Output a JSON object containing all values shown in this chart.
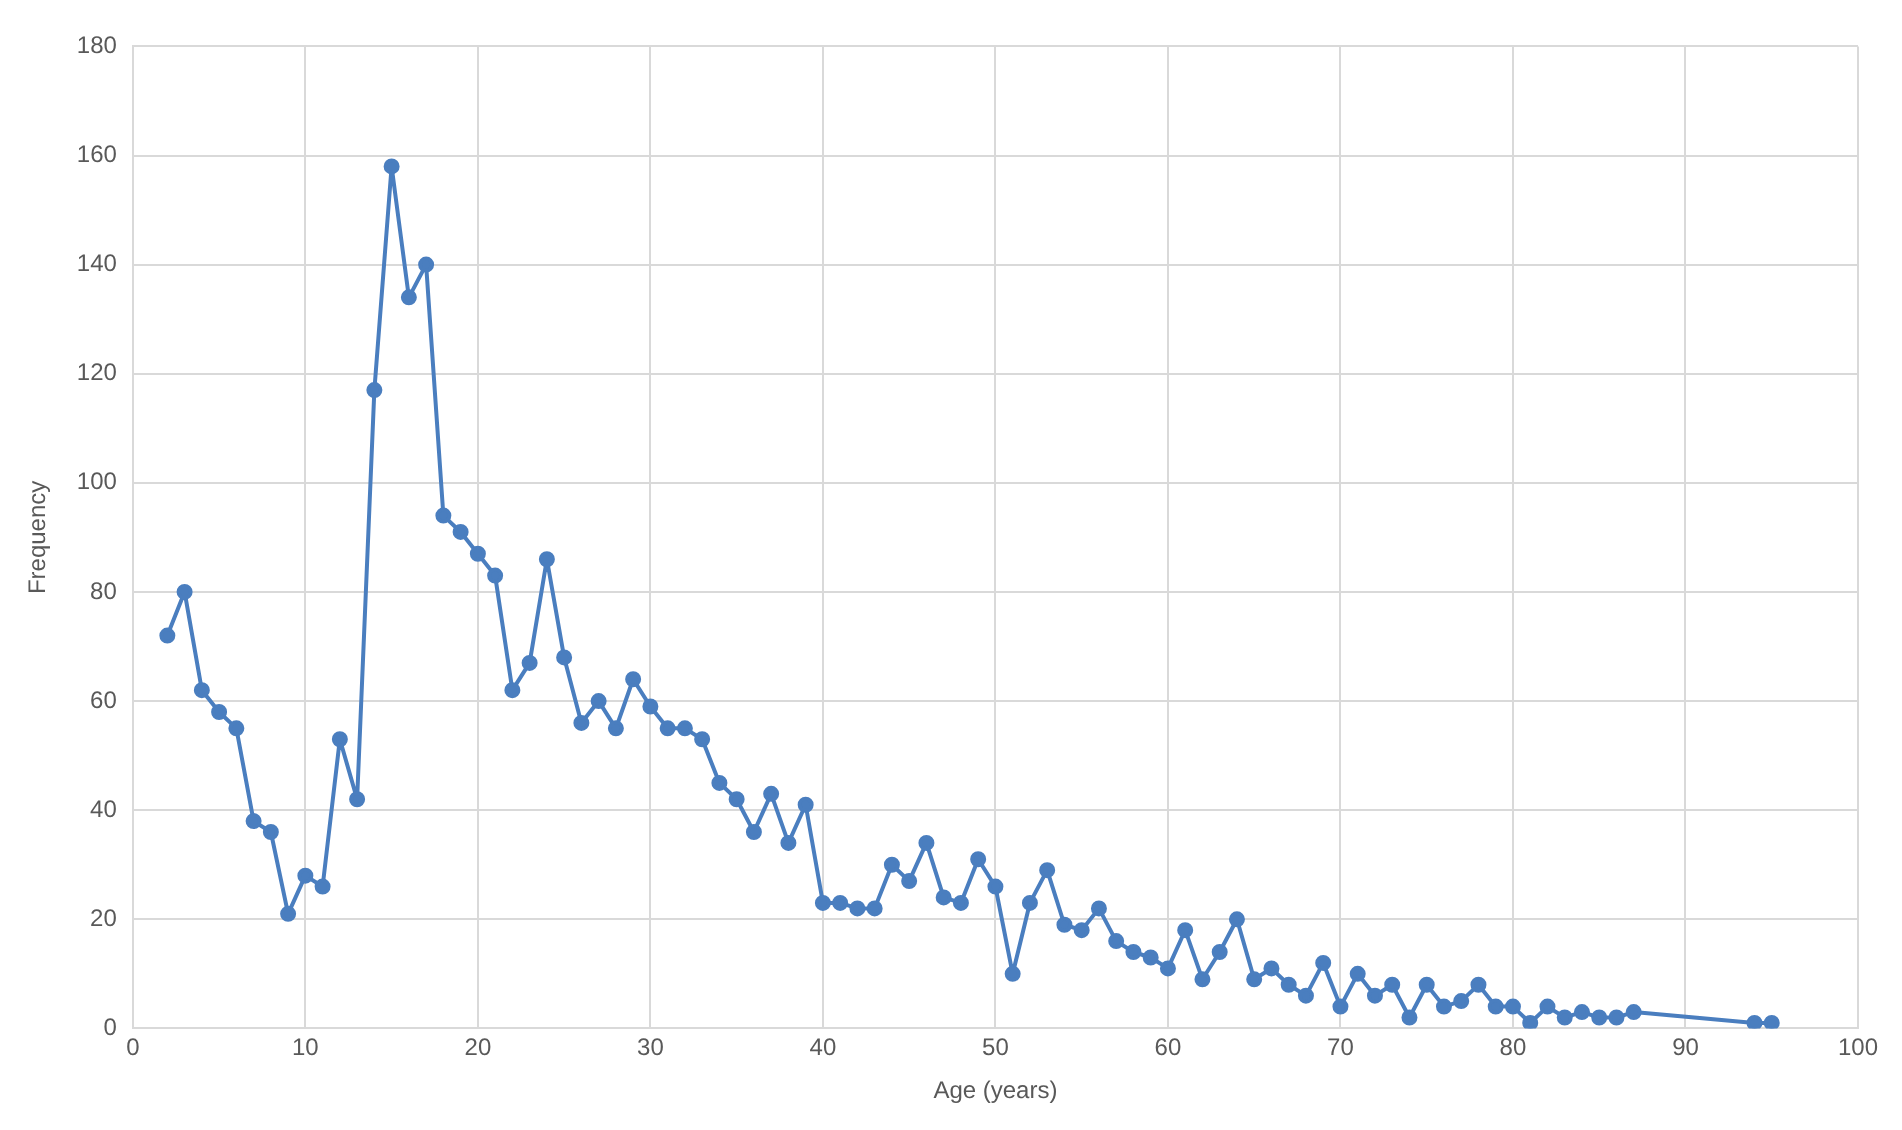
{
  "chart_data": {
    "type": "line",
    "xlabel": "Age (years)",
    "ylabel": "Frequency",
    "x": [
      2,
      3,
      4,
      5,
      6,
      7,
      8,
      9,
      10,
      11,
      12,
      13,
      14,
      15,
      16,
      17,
      18,
      19,
      20,
      21,
      22,
      23,
      24,
      25,
      26,
      27,
      28,
      29,
      30,
      31,
      32,
      33,
      34,
      35,
      36,
      37,
      38,
      39,
      40,
      41,
      42,
      43,
      44,
      45,
      46,
      47,
      48,
      49,
      50,
      51,
      52,
      53,
      54,
      55,
      56,
      57,
      58,
      59,
      60,
      61,
      62,
      63,
      64,
      65,
      66,
      67,
      68,
      69,
      70,
      71,
      72,
      73,
      74,
      75,
      76,
      77,
      78,
      79,
      80,
      81,
      82,
      83,
      84,
      85,
      86,
      87,
      94,
      95
    ],
    "series": [
      {
        "color": "#4a7ebf",
        "values": [
          72,
          80,
          62,
          58,
          55,
          38,
          36,
          21,
          28,
          26,
          53,
          42,
          117,
          158,
          134,
          140,
          94,
          91,
          87,
          83,
          62,
          67,
          86,
          68,
          56,
          60,
          55,
          64,
          59,
          55,
          55,
          53,
          45,
          42,
          36,
          43,
          34,
          41,
          23,
          23,
          22,
          22,
          30,
          27,
          34,
          24,
          23,
          31,
          26,
          10,
          23,
          29,
          19,
          18,
          22,
          16,
          14,
          13,
          11,
          18,
          9,
          14,
          20,
          9,
          11,
          8,
          6,
          12,
          4,
          10,
          6,
          8,
          2,
          8,
          4,
          5,
          8,
          4,
          4,
          1,
          4,
          2,
          3,
          2,
          2,
          3,
          1,
          1
        ]
      }
    ],
    "xlim": [
      0,
      100
    ],
    "xticks": [
      0,
      10,
      20,
      30,
      40,
      50,
      60,
      70,
      80,
      90,
      100
    ],
    "ylim": [
      0,
      180
    ],
    "yticks": [
      0,
      20,
      40,
      60,
      80,
      100,
      120,
      140,
      160,
      180
    ],
    "grid": true,
    "marker": "circle",
    "line_style": "solid",
    "legend": false
  }
}
